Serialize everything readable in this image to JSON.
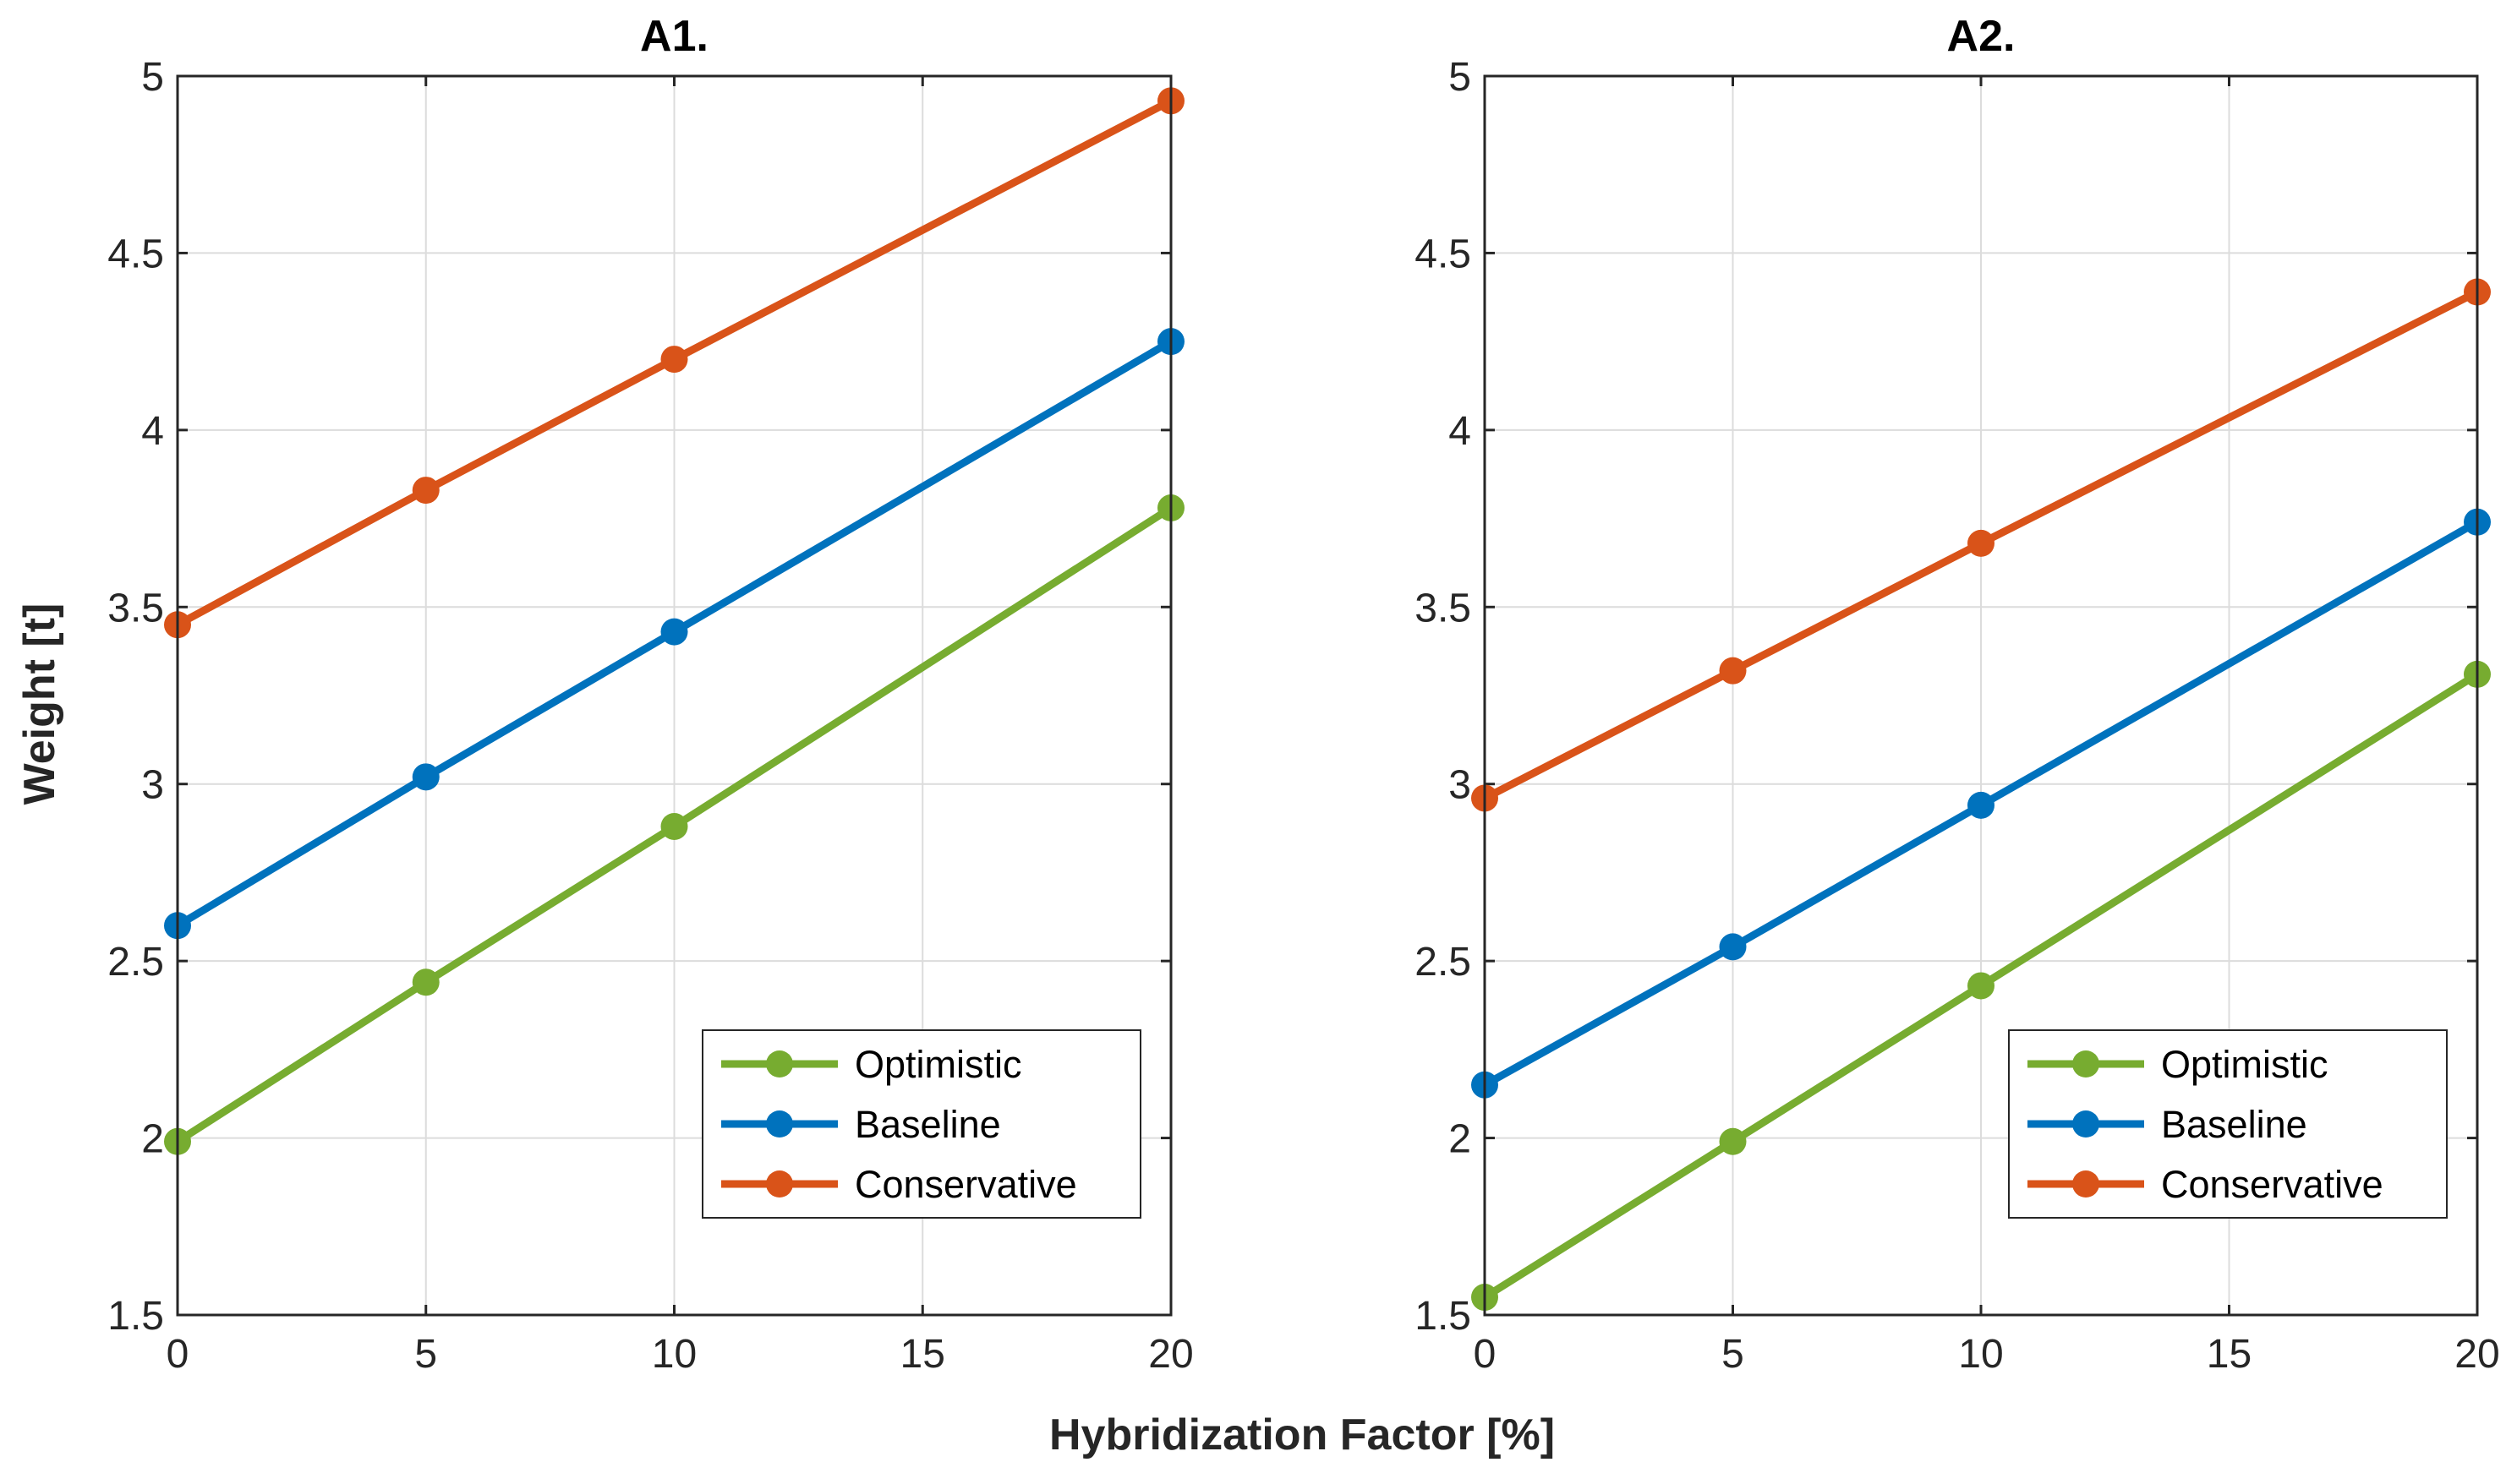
{
  "figure": {
    "xlabel": "Hybridization Factor [%]",
    "ylabel": "Weight [t]"
  },
  "chart_data": [
    {
      "type": "line",
      "title": "A1.",
      "x": [
        0,
        5,
        10,
        20
      ],
      "xlim": [
        0,
        20
      ],
      "ylim": [
        1.5,
        5
      ],
      "xticks": [
        0,
        5,
        10,
        15,
        20
      ],
      "yticks": [
        1.5,
        2,
        2.5,
        3,
        3.5,
        4,
        4.5,
        5
      ],
      "xtick_labels": [
        "0",
        "5",
        "10",
        "15",
        "20"
      ],
      "ytick_labels": [
        "1.5",
        "2",
        "2.5",
        "3",
        "3.5",
        "4",
        "4.5",
        "5"
      ],
      "grid": true,
      "legend_position": "bottom-right",
      "series": [
        {
          "name": "Optimistic",
          "color": "#77ac30",
          "values": [
            1.99,
            2.44,
            2.88,
            3.78
          ]
        },
        {
          "name": "Baseline",
          "color": "#0072bd",
          "values": [
            2.6,
            3.02,
            3.43,
            4.25
          ]
        },
        {
          "name": "Conservative",
          "color": "#d95319",
          "values": [
            3.45,
            3.83,
            4.2,
            4.93
          ]
        }
      ]
    },
    {
      "type": "line",
      "title": "A2.",
      "x": [
        0,
        5,
        10,
        20
      ],
      "xlim": [
        0,
        20
      ],
      "ylim": [
        1.5,
        5
      ],
      "xticks": [
        0,
        5,
        10,
        15,
        20
      ],
      "yticks": [
        1.5,
        2,
        2.5,
        3,
        3.5,
        4,
        4.5,
        5
      ],
      "xtick_labels": [
        "0",
        "5",
        "10",
        "15",
        "20"
      ],
      "ytick_labels": [
        "1.5",
        "2",
        "2.5",
        "3",
        "3.5",
        "4",
        "4.5",
        "5"
      ],
      "grid": true,
      "legend_position": "bottom-right",
      "series": [
        {
          "name": "Optimistic",
          "color": "#77ac30",
          "values": [
            1.55,
            1.99,
            2.43,
            3.31
          ]
        },
        {
          "name": "Baseline",
          "color": "#0072bd",
          "values": [
            2.15,
            2.54,
            2.94,
            3.74
          ]
        },
        {
          "name": "Conservative",
          "color": "#d95319",
          "values": [
            2.96,
            3.32,
            3.68,
            4.39
          ]
        }
      ]
    }
  ]
}
